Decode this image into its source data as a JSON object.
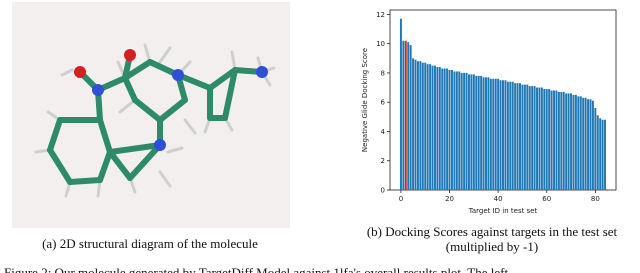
{
  "figure": {
    "panel_a_caption": "(a) 2D structural diagram of the molecule",
    "panel_b_caption": [
      "(b) Docking Scores against targets in the test set",
      "(multiplied by -1)"
    ],
    "caption": "Figure 2: Our molecule generated by TargetDiff Model against 1lfa's overall results plot. The left"
  },
  "chart_data": {
    "type": "bar",
    "xlabel": "Target ID in test set",
    "ylabel": "Negative Glide Docking Score",
    "x": [
      0,
      1,
      2,
      3,
      4,
      5,
      6,
      7,
      8,
      9,
      10,
      11,
      12,
      13,
      14,
      15,
      16,
      17,
      18,
      19,
      20,
      21,
      22,
      23,
      24,
      25,
      26,
      27,
      28,
      29,
      30,
      31,
      32,
      33,
      34,
      35,
      36,
      37,
      38,
      39,
      40,
      41,
      42,
      43,
      44,
      45,
      46,
      47,
      48,
      49,
      50,
      51,
      52,
      53,
      54,
      55,
      56,
      57,
      58,
      59,
      60,
      61,
      62,
      63,
      64,
      65,
      66,
      67,
      68,
      69,
      70,
      71,
      72,
      73,
      74,
      75,
      76,
      77,
      78,
      79,
      80,
      81,
      82,
      83,
      84
    ],
    "values": [
      11.7,
      10.2,
      10.2,
      10.1,
      9.9,
      9.0,
      8.9,
      8.8,
      8.8,
      8.7,
      8.7,
      8.6,
      8.6,
      8.5,
      8.5,
      8.4,
      8.4,
      8.3,
      8.3,
      8.3,
      8.2,
      8.2,
      8.1,
      8.1,
      8.1,
      8.0,
      8.0,
      8.0,
      7.9,
      7.9,
      7.9,
      7.8,
      7.8,
      7.8,
      7.7,
      7.7,
      7.7,
      7.6,
      7.6,
      7.6,
      7.6,
      7.5,
      7.5,
      7.5,
      7.4,
      7.4,
      7.4,
      7.3,
      7.3,
      7.3,
      7.2,
      7.2,
      7.2,
      7.1,
      7.1,
      7.1,
      7.0,
      7.0,
      7.0,
      6.9,
      6.9,
      6.9,
      6.8,
      6.8,
      6.8,
      6.7,
      6.7,
      6.7,
      6.6,
      6.6,
      6.6,
      6.5,
      6.5,
      6.4,
      6.4,
      6.3,
      6.3,
      6.2,
      6.2,
      6.1,
      5.6,
      5.1,
      4.9,
      4.8,
      4.8
    ],
    "color": "#1f77b4",
    "highlight_index": 2,
    "highlight_color": "#d62728",
    "xlim": [
      -4.5,
      88.5
    ],
    "ylim": [
      0,
      12.3
    ],
    "xticks": [
      0,
      20,
      40,
      60,
      80
    ],
    "yticks": [
      0,
      2,
      4,
      6,
      8,
      10,
      12
    ]
  }
}
